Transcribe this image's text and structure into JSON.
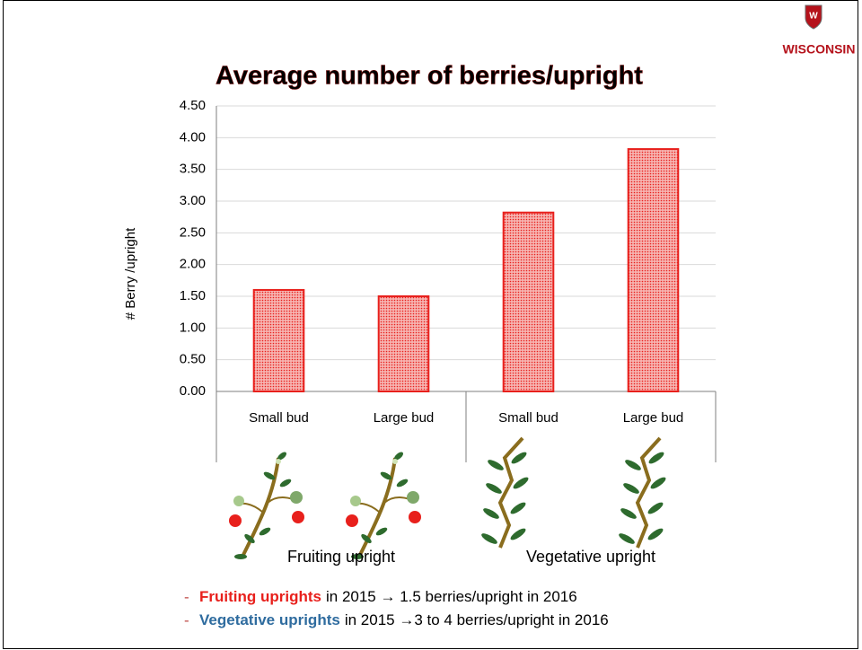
{
  "logo": "WISCONSIN",
  "chart_data": {
    "type": "bar",
    "title": "Average number of berries/upright",
    "y_label": "# Berry /upright",
    "categories": [
      "Small bud",
      "Large bud",
      "Small bud",
      "Large bud"
    ],
    "groups": [
      "Fruiting upright",
      "Vegetative upright"
    ],
    "values": [
      1.6,
      1.5,
      2.82,
      3.82
    ],
    "color": "#e8201c",
    "ylim": [
      0,
      4.5
    ],
    "yticks": [
      {
        "value": 0,
        "label": "0.00"
      },
      {
        "value": 0.5,
        "label": "0.50"
      },
      {
        "value": 1,
        "label": "1.00"
      },
      {
        "value": 1.5,
        "label": "1.50"
      },
      {
        "value": 2,
        "label": "2.00"
      },
      {
        "value": 2.5,
        "label": "2.50"
      },
      {
        "value": 3,
        "label": "3.00"
      },
      {
        "value": 3.5,
        "label": "3.50"
      },
      {
        "value": 4,
        "label": "4.00"
      },
      {
        "value": 4.5,
        "label": "4.50"
      }
    ],
    "grid": true
  },
  "notes": [
    {
      "highlight": "Fruiting uprights",
      "color": "#e8201c",
      "text": "in 2015 → 1.5 berries/upright in 2016"
    },
    {
      "highlight": "Vegetative uprights",
      "color": "#2f6c9f",
      "text": "in 2015 →3 to 4 berries/upright in 2016"
    }
  ]
}
